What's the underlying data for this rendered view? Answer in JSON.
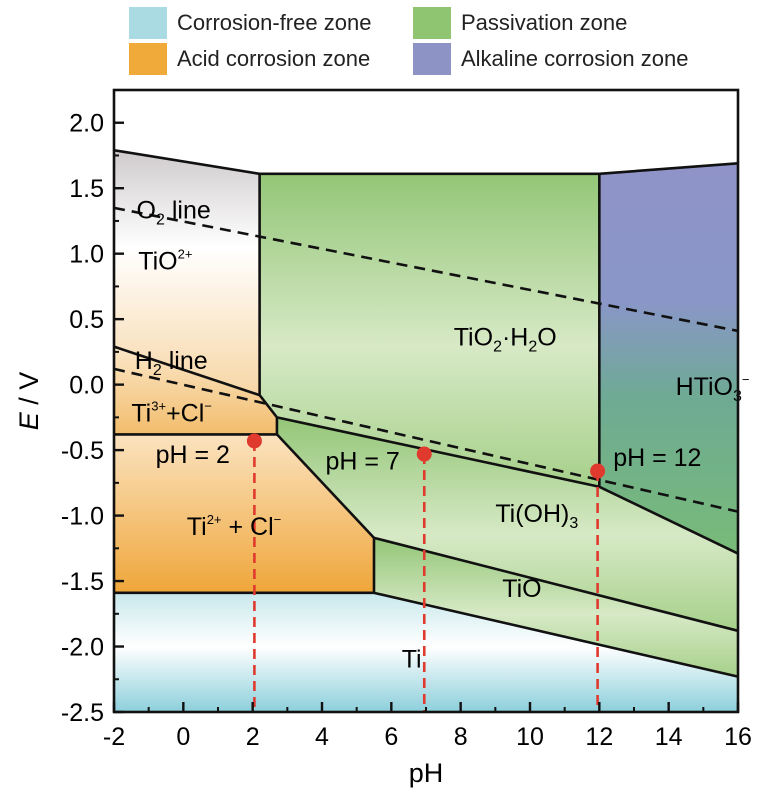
{
  "legend": [
    {
      "label": "Corrosion-free zone",
      "color": "#aadbe3"
    },
    {
      "label": "Passivation zone",
      "color": "#8fc470"
    },
    {
      "label": "Acid corrosion zone",
      "color": "#f0aa3a"
    },
    {
      "label": "Alkaline corrosion zone",
      "color": "#8e93c6"
    }
  ],
  "chart_data": {
    "type": "pourbaix-diagram",
    "xlabel": "pH",
    "ylabel": "E / V",
    "xlim": [
      -2,
      16
    ],
    "ylim": [
      -2.5,
      2.25
    ],
    "xticks": [
      -2,
      0,
      2,
      4,
      6,
      8,
      10,
      12,
      14,
      16
    ],
    "yticks": [
      -2.5,
      -2.0,
      -1.5,
      -1.0,
      -0.5,
      0.0,
      0.5,
      1.0,
      1.5,
      2.0
    ],
    "xtick_labels": [
      "-2",
      "0",
      "2",
      "4",
      "6",
      "8",
      "10",
      "12",
      "14",
      "16"
    ],
    "ytick_labels": [
      "-2.5",
      "-2.0",
      "-1.5",
      "-1.0",
      "-0.5",
      "0.0",
      "0.5",
      "1.0",
      "1.5",
      "2.0"
    ],
    "regions": [
      {
        "name": "Ti",
        "zone": "Corrosion-free zone",
        "label_at": [
          6.2,
          -2.1
        ],
        "polygon": [
          [
            -2,
            -1.59
          ],
          [
            5.5,
            -1.59
          ],
          [
            16,
            -2.23
          ],
          [
            16,
            -2.5
          ],
          [
            -2,
            -2.5
          ]
        ]
      },
      {
        "name": "TiO",
        "zone": "Passivation zone",
        "label_at": [
          9.2,
          -1.62
        ],
        "polygon": [
          [
            5.5,
            -1.59
          ],
          [
            5.5,
            -1.17
          ],
          [
            16,
            -1.88
          ],
          [
            16,
            -2.23
          ]
        ]
      },
      {
        "name": "Ti(OH)3",
        "zone": "Passivation zone",
        "label_at": [
          9.4,
          -1.05
        ],
        "polygon": [
          [
            2.7,
            -0.38
          ],
          [
            2.7,
            -0.25
          ],
          [
            12,
            -0.78
          ],
          [
            16,
            -1.29
          ],
          [
            16,
            -1.88
          ],
          [
            5.5,
            -1.17
          ]
        ]
      },
      {
        "name": "TiO2·H2O",
        "zone": "Passivation zone",
        "label_at": [
          8.3,
          0.3
        ],
        "polygon": [
          [
            2.2,
            1.61
          ],
          [
            12,
            1.61
          ],
          [
            12,
            -0.78
          ],
          [
            2.7,
            -0.25
          ],
          [
            2.2,
            -0.08
          ]
        ]
      },
      {
        "name": "HTiO3-",
        "zone": "Alkaline corrosion zone",
        "label_at": [
          14.2,
          -0.05
        ],
        "polygon": [
          [
            12,
            1.61
          ],
          [
            16,
            1.69
          ],
          [
            16,
            -1.29
          ],
          [
            12,
            -0.78
          ]
        ]
      },
      {
        "name": "TiO2+",
        "zone": "Acid corrosion zone",
        "label_at": [
          -1.3,
          0.88
        ],
        "polygon": [
          [
            -2,
            1.79
          ],
          [
            2.2,
            1.61
          ],
          [
            2.2,
            -0.08
          ],
          [
            -2,
            0.29
          ]
        ]
      },
      {
        "name": "Ti3+ + Cl-",
        "zone": "Acid corrosion zone",
        "label_at": [
          -1.4,
          -0.28
        ],
        "polygon": [
          [
            -2,
            0.29
          ],
          [
            2.2,
            -0.08
          ],
          [
            2.7,
            -0.25
          ],
          [
            2.7,
            -0.38
          ],
          [
            -2,
            -0.38
          ]
        ]
      },
      {
        "name": "Ti2+ + Cl-",
        "zone": "Acid corrosion zone",
        "label_at": [
          0.1,
          -1.15
        ],
        "polygon": [
          [
            -2,
            -0.38
          ],
          [
            2.7,
            -0.38
          ],
          [
            5.5,
            -1.17
          ],
          [
            5.5,
            -1.59
          ],
          [
            -2,
            -1.59
          ]
        ]
      }
    ],
    "boundaries": [
      [
        [
          -2,
          1.79
        ],
        [
          2.2,
          1.61
        ],
        [
          12,
          1.61
        ],
        [
          16,
          1.69
        ]
      ],
      [
        [
          2.2,
          1.61
        ],
        [
          2.2,
          -0.08
        ],
        [
          2.7,
          -0.25
        ],
        [
          2.7,
          -0.38
        ],
        [
          5.5,
          -1.17
        ],
        [
          5.5,
          -1.59
        ]
      ],
      [
        [
          -2,
          0.29
        ],
        [
          2.2,
          -0.08
        ]
      ],
      [
        [
          -2,
          -0.38
        ],
        [
          2.7,
          -0.38
        ]
      ],
      [
        [
          -2,
          -1.59
        ],
        [
          5.5,
          -1.59
        ],
        [
          16,
          -2.23
        ]
      ],
      [
        [
          5.5,
          -1.17
        ],
        [
          16,
          -1.88
        ]
      ],
      [
        [
          2.7,
          -0.25
        ],
        [
          12,
          -0.78
        ],
        [
          16,
          -1.29
        ]
      ],
      [
        [
          12,
          1.61
        ],
        [
          12,
          -0.78
        ]
      ]
    ],
    "water_lines": [
      {
        "name": "O2 line",
        "points": [
          [
            -2,
            1.35
          ],
          [
            16,
            0.41
          ]
        ]
      },
      {
        "name": "H2 line",
        "points": [
          [
            -2,
            0.12
          ],
          [
            16,
            -0.97
          ]
        ]
      }
    ],
    "markers": [
      {
        "label": "pH = 2",
        "x": 2.05,
        "y": -0.43
      },
      {
        "label": "pH = 7",
        "x": 6.95,
        "y": -0.53
      },
      {
        "label": "pH = 12",
        "x": 11.95,
        "y": -0.66
      }
    ],
    "text_labels": [
      {
        "parts": [
          [
            "TiO",
            "n"
          ],
          [
            "2+",
            "sup"
          ]
        ],
        "at": [
          -1.3,
          0.88
        ]
      },
      {
        "parts": [
          [
            "O",
            "n"
          ],
          [
            "2",
            "sub"
          ],
          [
            " line",
            "n"
          ]
        ],
        "at": [
          -1.35,
          1.27
        ]
      },
      {
        "parts": [
          [
            "H",
            "n"
          ],
          [
            "2",
            "sub"
          ],
          [
            " line",
            "n"
          ]
        ],
        "at": [
          -1.4,
          0.12
        ]
      },
      {
        "parts": [
          [
            "Ti",
            "n"
          ],
          [
            "3+",
            "sup"
          ],
          [
            "+Cl",
            "n"
          ],
          [
            "−",
            "sup"
          ]
        ],
        "at": [
          -1.5,
          -0.28
        ]
      },
      {
        "parts": [
          [
            "Ti",
            "n"
          ],
          [
            "2+",
            "sup"
          ],
          [
            " + Cl",
            "n"
          ],
          [
            "−",
            "sup"
          ]
        ],
        "at": [
          0.1,
          -1.15
        ]
      },
      {
        "parts": [
          [
            "TiO",
            "n"
          ],
          [
            "2",
            "sub"
          ],
          [
            "·H",
            "n"
          ],
          [
            "2",
            "sub"
          ],
          [
            "O",
            "n"
          ]
        ],
        "at": [
          7.8,
          0.3
        ]
      },
      {
        "parts": [
          [
            "HTiO",
            "n"
          ],
          [
            "3",
            "sub"
          ],
          [
            "−",
            "sup"
          ]
        ],
        "at": [
          14.2,
          -0.08
        ]
      },
      {
        "parts": [
          [
            "Ti(OH)",
            "n"
          ],
          [
            "3",
            "sub"
          ]
        ],
        "at": [
          9.0,
          -1.05
        ]
      },
      {
        "parts": [
          [
            "TiO",
            "n"
          ]
        ],
        "at": [
          9.2,
          -1.62
        ]
      },
      {
        "parts": [
          [
            "Ti",
            "n"
          ]
        ],
        "at": [
          6.3,
          -2.16
        ]
      },
      {
        "parts": [
          [
            "pH = 2",
            "n"
          ]
        ],
        "at": [
          -0.8,
          -0.6
        ]
      },
      {
        "parts": [
          [
            "pH = 7",
            "n"
          ]
        ],
        "at": [
          4.1,
          -0.65
        ]
      },
      {
        "parts": [
          [
            "pH = 12",
            "n"
          ]
        ],
        "at": [
          12.4,
          -0.62
        ]
      }
    ]
  }
}
